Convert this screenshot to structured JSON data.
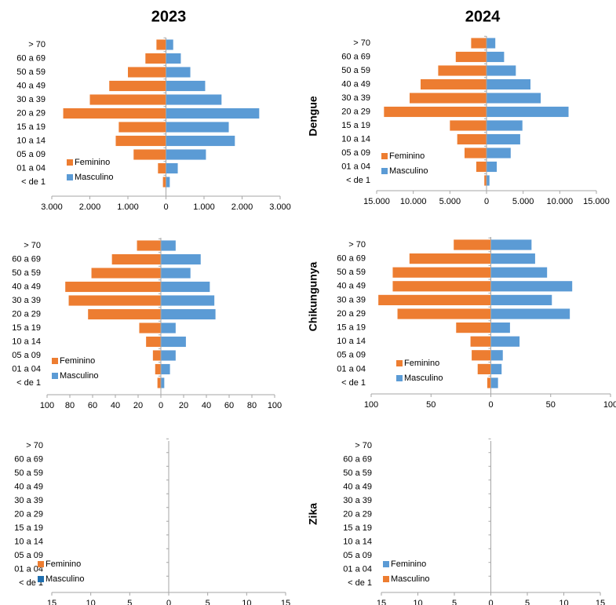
{
  "column_titles": [
    "2023",
    "2024"
  ],
  "row_titles": [
    "Dengue",
    "Chikungunya",
    "Zika"
  ],
  "chart_data": [
    {
      "type": "pyramid",
      "legend": "lower left",
      "categories": [
        "> 70",
        "60 a 69",
        "50 a 59",
        "40 a 49",
        "30 a 39",
        "20 a 29",
        "15 a 19",
        "10 a 14",
        "05 a 09",
        "01 a 04",
        "< de 1"
      ],
      "series": [
        {
          "name": "Feminino",
          "color": "#ed7d31",
          "values": [
            -250,
            -540,
            -1000,
            -1490,
            -2000,
            -2700,
            -1240,
            -1320,
            -850,
            -210,
            -80
          ]
        },
        {
          "name": "Masculino",
          "color": "#5b9bd5",
          "values": [
            190,
            390,
            640,
            1030,
            1460,
            2450,
            1650,
            1810,
            1050,
            310,
            100
          ]
        }
      ],
      "xlim": [
        -3000,
        3000
      ],
      "xticks": [
        {
          "value": -3000,
          "label": "3.000"
        },
        {
          "value": -2000,
          "label": "2.000"
        },
        {
          "value": -1000,
          "label": "1.000"
        },
        0,
        {
          "value": 1000,
          "label": "1.000"
        },
        {
          "value": 2000,
          "label": "2.000"
        },
        {
          "value": 3000,
          "label": "3.000"
        }
      ]
    },
    {
      "type": "pyramid",
      "legend": "lower left",
      "categories": [
        "> 70",
        "60 a 69",
        "50 a 59",
        "40 a 49",
        "30 a 39",
        "20 a 29",
        "15 a 19",
        "10 a 14",
        "05 a 09",
        "01 a 04",
        "< de 1"
      ],
      "series": [
        {
          "name": "Feminino",
          "color": "#ed7d31",
          "values": [
            -2100,
            -4200,
            -6600,
            -9000,
            -10500,
            -14000,
            -5000,
            -4000,
            -3000,
            -1400,
            -300
          ]
        },
        {
          "name": "Masculino",
          "color": "#5b9bd5",
          "values": [
            1200,
            2400,
            4000,
            6000,
            7400,
            11200,
            4900,
            4600,
            3300,
            1400,
            400
          ]
        }
      ],
      "xlim": [
        -15000,
        15000
      ],
      "xticks": [
        {
          "value": -15000,
          "label": "15.000"
        },
        {
          "value": -10000,
          "label": "10.000"
        },
        {
          "value": -5000,
          "label": "5.000"
        },
        0,
        {
          "value": 5000,
          "label": "5.000"
        },
        {
          "value": 10000,
          "label": "10.000"
        },
        {
          "value": 15000,
          "label": "15.000"
        }
      ]
    },
    {
      "type": "pyramid",
      "legend": "lower left",
      "categories": [
        "> 70",
        "60 a 69",
        "50 a 59",
        "40 a 49",
        "30 a 39",
        "20 a 29",
        "15 a 19",
        "10 a 14",
        "05 a 09",
        "01 a 04",
        "< de 1"
      ],
      "series": [
        {
          "name": "Feminino",
          "color": "#ed7d31",
          "values": [
            -21,
            -43,
            -61,
            -84,
            -81,
            -64,
            -19,
            -13,
            -7,
            -5,
            -3
          ]
        },
        {
          "name": "Masculino",
          "color": "#5b9bd5",
          "values": [
            13,
            35,
            26,
            43,
            47,
            48,
            13,
            22,
            13,
            8,
            3
          ]
        }
      ],
      "xlim": [
        -100,
        100
      ],
      "xticks": [
        {
          "value": -100,
          "label": "100"
        },
        {
          "value": -80,
          "label": "80"
        },
        {
          "value": -60,
          "label": "60"
        },
        {
          "value": -40,
          "label": "40"
        },
        {
          "value": -20,
          "label": "20"
        },
        0,
        20,
        40,
        60,
        80,
        100
      ]
    },
    {
      "type": "pyramid",
      "legend": "lower left",
      "categories": [
        "> 70",
        "60 a 69",
        "50 a 59",
        "40 a 49",
        "30 a 39",
        "20 a 29",
        "15 a 19",
        "10 a 14",
        "05 a 09",
        "01 a 04",
        "< de 1"
      ],
      "series": [
        {
          "name": "Feminino",
          "color": "#ed7d31",
          "values": [
            -31,
            -68,
            -82,
            -82,
            -94,
            -78,
            -29,
            -17,
            -16,
            -11,
            -3
          ]
        },
        {
          "name": "Masculino",
          "color": "#5b9bd5",
          "values": [
            34,
            37,
            47,
            68,
            51,
            66,
            16,
            24,
            10,
            9,
            6
          ]
        }
      ],
      "xlim": [
        -100,
        100
      ],
      "xticks": [
        {
          "value": -100,
          "label": "100"
        },
        {
          "value": -50,
          "label": "50"
        },
        0,
        50,
        100
      ]
    },
    {
      "type": "pyramid",
      "legend": "lower left",
      "categories": [
        "> 70",
        "60 a 69",
        "50 a 59",
        "40 a 49",
        "30 a 39",
        "20 a 29",
        "15 a 19",
        "10 a 14",
        "05 a 09",
        "01 a 04",
        "< de 1"
      ],
      "series": [
        {
          "name": "Feminino",
          "color": "#ed7d31",
          "values": [
            0,
            0,
            0,
            0,
            0,
            0,
            0,
            0,
            0,
            0,
            0
          ]
        },
        {
          "name": "Masculino",
          "color": "#1f6fb0",
          "values": [
            0,
            0,
            0,
            0,
            0,
            0,
            0,
            0,
            0,
            0,
            0
          ]
        }
      ],
      "xlim": [
        -15,
        15
      ],
      "xticks": [
        {
          "value": -15,
          "label": "15"
        },
        {
          "value": -10,
          "label": "10"
        },
        {
          "value": -5,
          "label": "5"
        },
        0,
        5,
        10,
        15
      ]
    },
    {
      "type": "pyramid",
      "legend": "lower left",
      "categories": [
        "> 70",
        "60 a 69",
        "50 a 59",
        "40 a 49",
        "30 a 39",
        "20 a 29",
        "15 a 19",
        "10 a 14",
        "05 a 09",
        "01 a 04",
        "< de 1"
      ],
      "series": [
        {
          "name": "Feminino",
          "color": "#5b9bd5",
          "values": [
            0,
            0,
            0,
            0,
            0,
            0,
            0,
            0,
            0,
            0,
            0
          ]
        },
        {
          "name": "Masculino",
          "color": "#ed7d31",
          "values": [
            0,
            0,
            0,
            0,
            0,
            0,
            0,
            0,
            0,
            0,
            0
          ]
        }
      ],
      "xlim": [
        -15,
        15
      ],
      "xticks": [
        {
          "value": -15,
          "label": "15"
        },
        {
          "value": -10,
          "label": "10"
        },
        {
          "value": -5,
          "label": "5"
        },
        0,
        5,
        10,
        15
      ]
    }
  ]
}
